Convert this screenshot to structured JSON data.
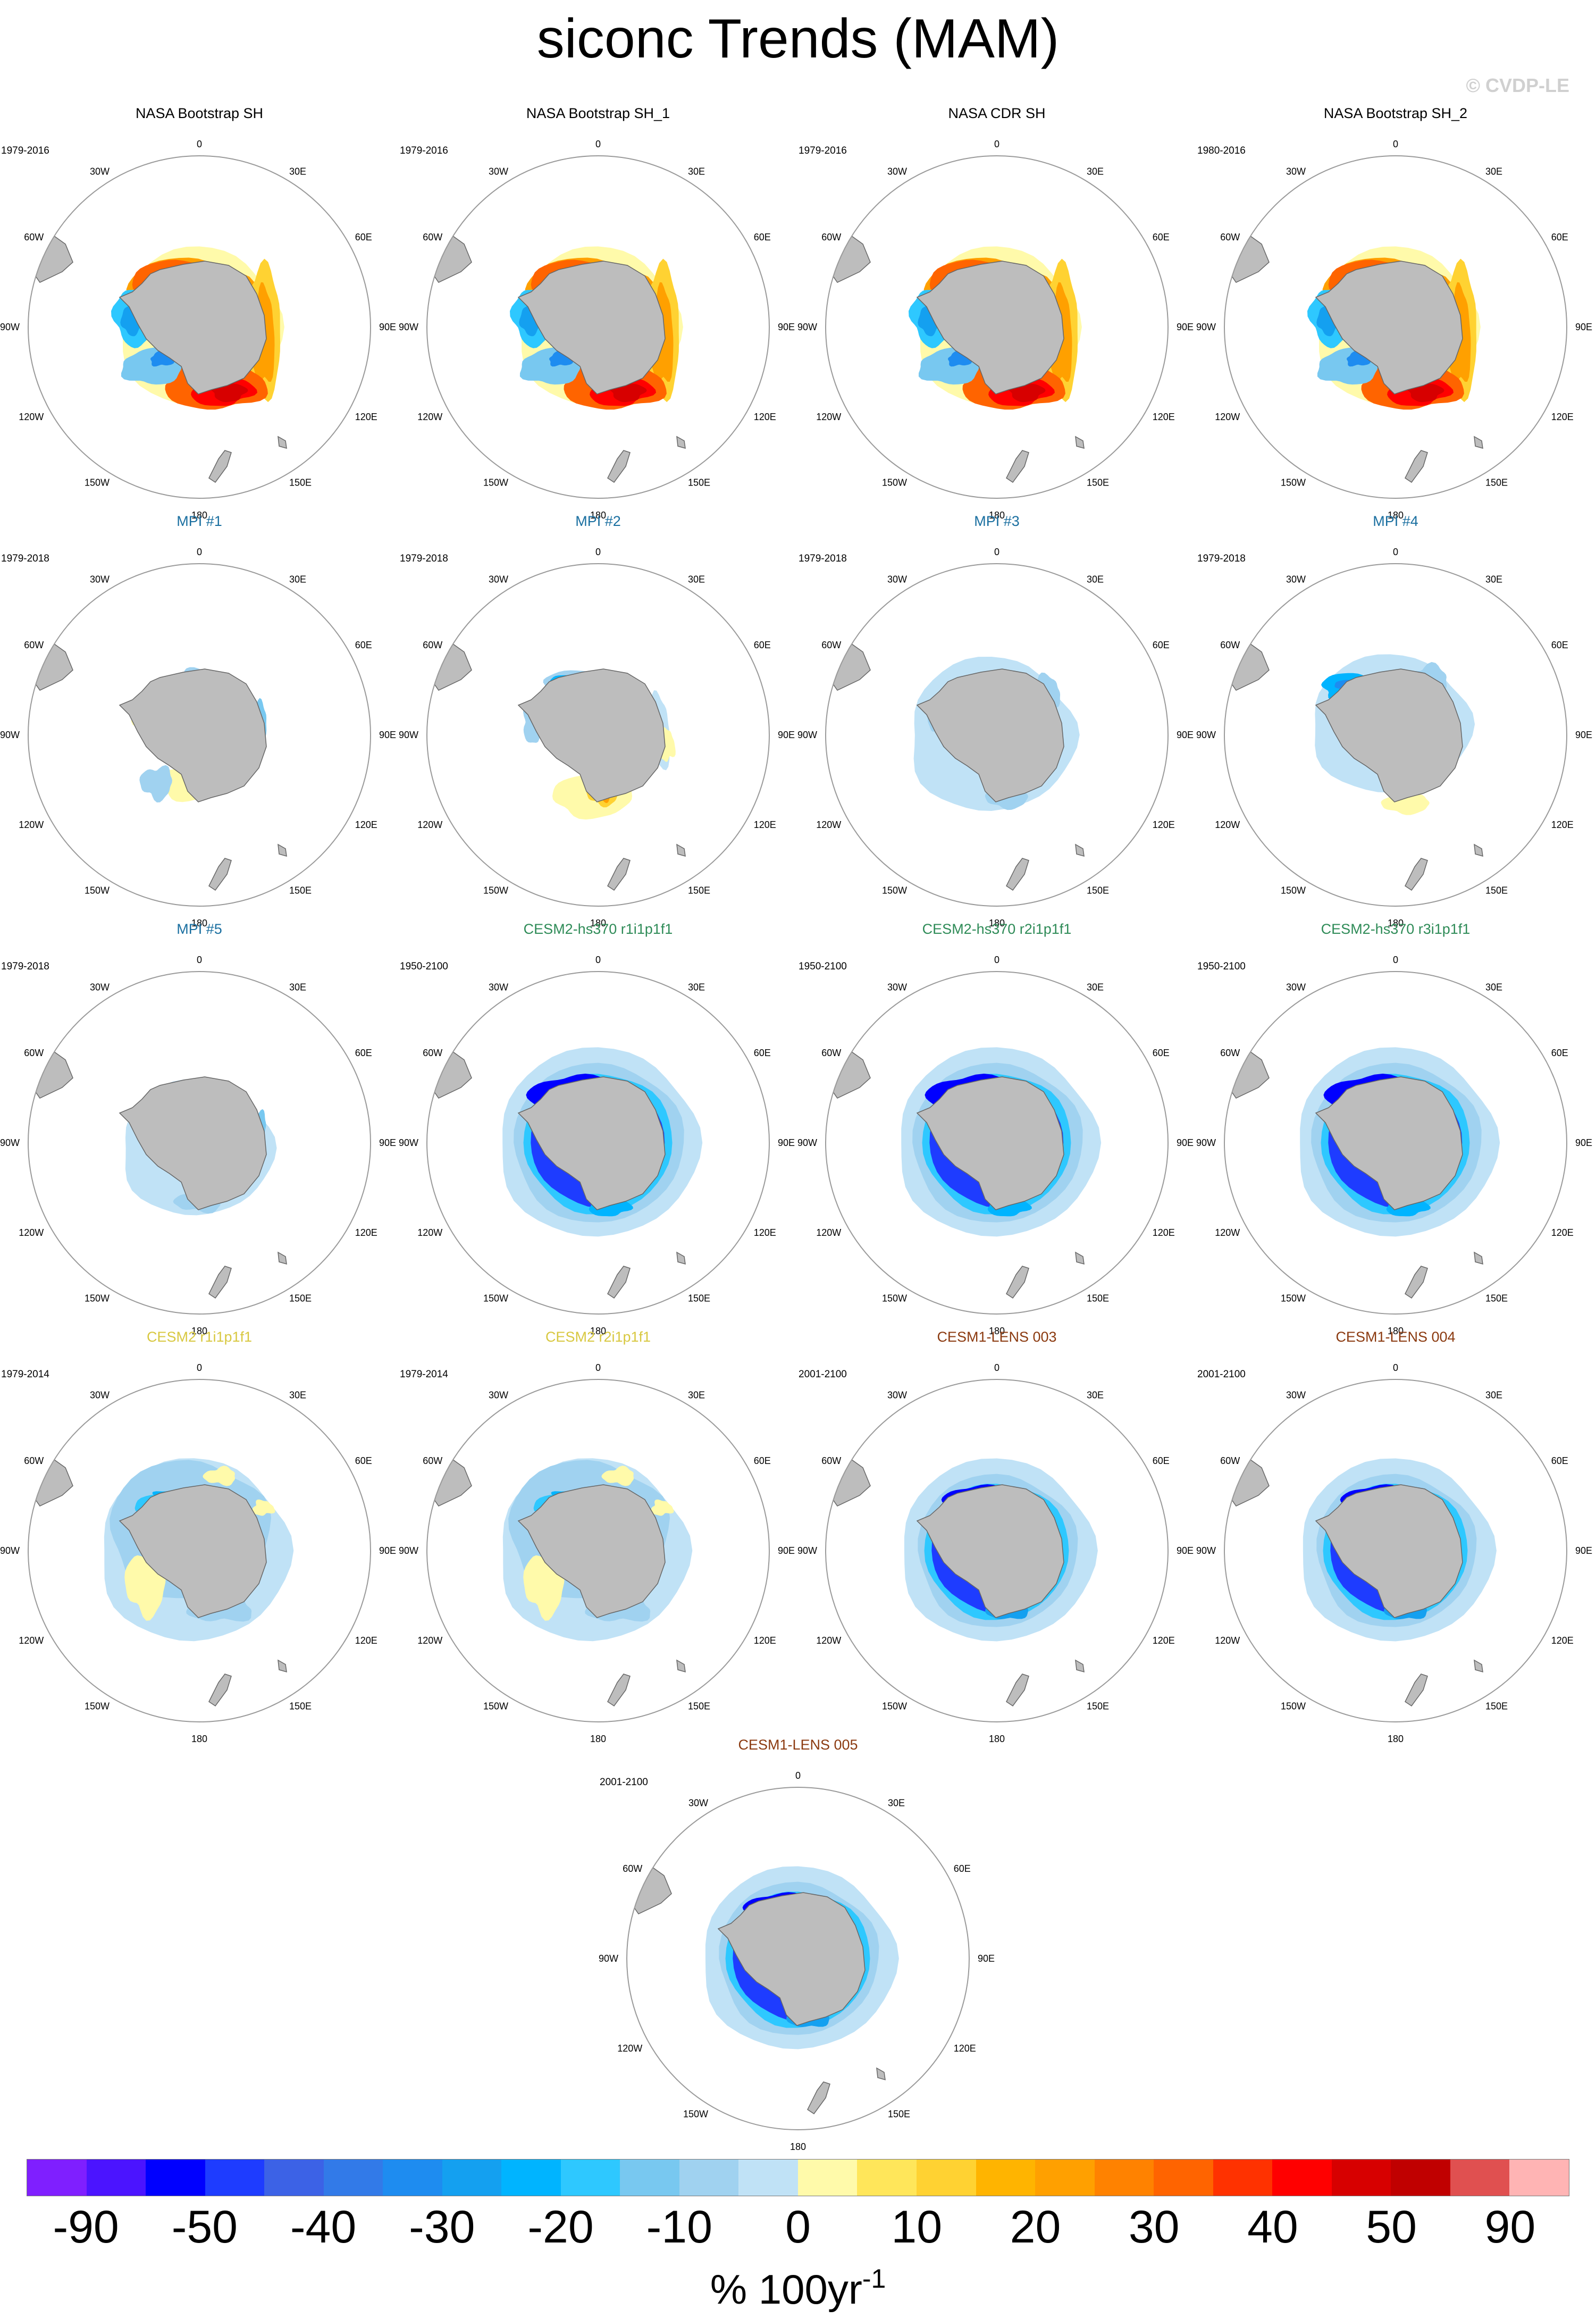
{
  "title": "siconc Trends (MAM)",
  "copyright": "© CVDP-LE",
  "map_labels": {
    "lon_0": "0",
    "lon_30E": "30E",
    "lon_60E": "60E",
    "lon_90E": "90E",
    "lon_120E": "120E",
    "lon_150E": "150E",
    "lon_180": "180",
    "lon_150W": "150W",
    "lon_120W": "120W",
    "lon_90W": "90W",
    "lon_60W": "60W",
    "lon_30W": "30W"
  },
  "colors": {
    "land": "#bdbdbd",
    "land_edge": "#666666",
    "circle": "#9a9a9a",
    "obs_title": "#000000",
    "mpi_title": "#1a6fa0",
    "cesm2hs_title": "#2e8b57",
    "cesm2_title": "#d8c840",
    "cesm1_title": "#8b3a10"
  },
  "panels": [
    {
      "title": "NASA Bootstrap SH",
      "period": "1979-2016",
      "group": "obs",
      "pattern": "obs"
    },
    {
      "title": "NASA Bootstrap SH_1",
      "period": "1979-2016",
      "group": "obs",
      "pattern": "obs"
    },
    {
      "title": "NASA CDR SH",
      "period": "1979-2016",
      "group": "obs",
      "pattern": "obs"
    },
    {
      "title": "NASA Bootstrap SH_2",
      "period": "1980-2016",
      "group": "obs",
      "pattern": "obs"
    },
    {
      "title": "MPI #1",
      "period": "1979-2018",
      "group": "mpi",
      "pattern": "mpi1"
    },
    {
      "title": "MPI #2",
      "period": "1979-2018",
      "group": "mpi",
      "pattern": "mpi2"
    },
    {
      "title": "MPI #3",
      "period": "1979-2018",
      "group": "mpi",
      "pattern": "mpi3"
    },
    {
      "title": "MPI #4",
      "period": "1979-2018",
      "group": "mpi",
      "pattern": "mpi4"
    },
    {
      "title": "MPI #5",
      "period": "1979-2018",
      "group": "mpi",
      "pattern": "mpi5"
    },
    {
      "title": "CESM2-hs370 r1i1p1f1",
      "period": "1950-2100",
      "group": "cesm2hs",
      "pattern": "strong"
    },
    {
      "title": "CESM2-hs370 r2i1p1f1",
      "period": "1950-2100",
      "group": "cesm2hs",
      "pattern": "strong"
    },
    {
      "title": "CESM2-hs370 r3i1p1f1",
      "period": "1950-2100",
      "group": "cesm2hs",
      "pattern": "strong"
    },
    {
      "title": "CESM2 r1i1p1f1",
      "period": "1979-2014",
      "group": "cesm2",
      "pattern": "cesm2"
    },
    {
      "title": "CESM2 r2i1p1f1",
      "period": "1979-2014",
      "group": "cesm2",
      "pattern": "cesm2"
    },
    {
      "title": "CESM1-LENS 003",
      "period": "2001-2100",
      "group": "cesm1",
      "pattern": "lens"
    },
    {
      "title": "CESM1-LENS 004",
      "period": "2001-2100",
      "group": "cesm1",
      "pattern": "lens"
    },
    {
      "title": "CESM1-LENS 005",
      "period": "2001-2100",
      "group": "cesm1",
      "pattern": "lens"
    }
  ],
  "colorbar": {
    "colors": [
      "#7f1fff",
      "#4b14ff",
      "#0000ff",
      "#1e3cff",
      "#3c62e6",
      "#327ae8",
      "#1e8cf0",
      "#14a0f0",
      "#00b4ff",
      "#2ec8ff",
      "#78c8f0",
      "#a0d2f0",
      "#c0e2f6",
      "#fffaaa",
      "#ffe65a",
      "#ffd232",
      "#ffb400",
      "#ffa000",
      "#ff8200",
      "#ff6400",
      "#ff3200",
      "#ff0000",
      "#d70000",
      "#c00000",
      "#e05050",
      "#ffb4b4"
    ],
    "tick_labels": [
      "-90",
      "-50",
      "-40",
      "-30",
      "-20",
      "-10",
      "0",
      "10",
      "20",
      "30",
      "40",
      "50",
      "90"
    ],
    "units": "% 100yr",
    "units_exponent": "-1"
  }
}
